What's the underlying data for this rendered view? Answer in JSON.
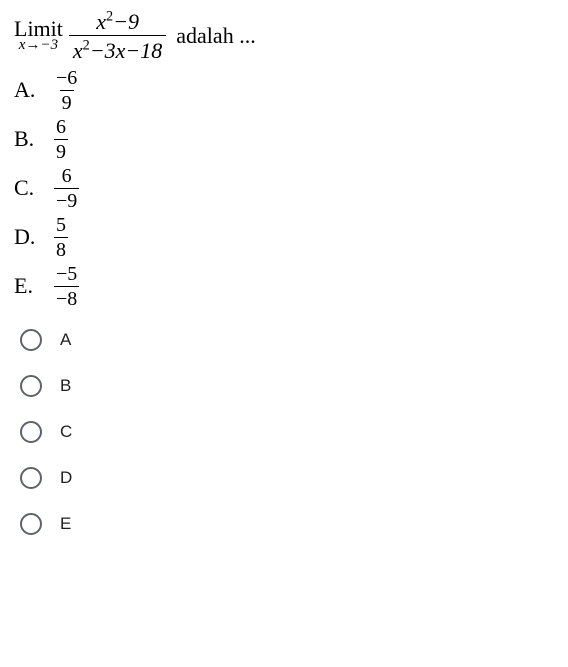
{
  "question": {
    "limit_word": "Limit",
    "limit_sub": "x→−3",
    "frac_num": "x²−9",
    "frac_den": "x²−3x−18",
    "tail": "adalah ..."
  },
  "answers": [
    {
      "letter": "A.",
      "num": "−6",
      "den": "9"
    },
    {
      "letter": "B.",
      "num": "6",
      "den": "9"
    },
    {
      "letter": "C.",
      "num": "6",
      "den": "−9"
    },
    {
      "letter": "D.",
      "num": "5",
      "den": "8"
    },
    {
      "letter": "E.",
      "num": "−5",
      "den": "−8"
    }
  ],
  "radios": [
    "A",
    "B",
    "C",
    "D",
    "E"
  ],
  "colors": {
    "text": "#000000",
    "radio_border": "#5f6368",
    "radio_label": "#202124",
    "bg": "#ffffff"
  }
}
